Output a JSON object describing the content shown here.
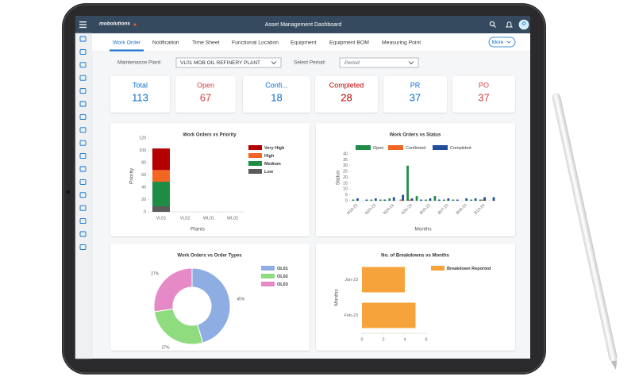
{
  "header": {
    "logo": "mobolutions",
    "title": "Asset Management Dashboard"
  },
  "tabs": [
    "Work Order",
    "Notification",
    "Time Sheet",
    "Functional Location",
    "Equipment",
    "Equipment BOM",
    "Measuring Point"
  ],
  "more": "More",
  "filters": {
    "plant_label": "Maintenance Plant:",
    "plant_value": "VL01 MOB OIL REFINERY PLANT",
    "period_label": "Select Period:",
    "period_placeholder": "Period"
  },
  "tiles": [
    {
      "label": "Total",
      "value": 113,
      "color": "#0a6ed1"
    },
    {
      "label": "Open",
      "value": 67,
      "color": "#d04343"
    },
    {
      "label": "Confi...",
      "value": 18,
      "color": "#0a6ed1"
    },
    {
      "label": "Completed",
      "value": 28,
      "color": "#bb0000"
    },
    {
      "label": "PR",
      "value": 37,
      "color": "#0a6ed1"
    },
    {
      "label": "PO",
      "value": 37,
      "color": "#d04343"
    }
  ],
  "chart_data": [
    {
      "type": "bar",
      "stacked": true,
      "title": "Work Orders vs Priority",
      "x_label": "Plants",
      "y_label": "Priority",
      "categories": [
        "VL01",
        "VL02",
        "WL01",
        "WL02"
      ],
      "series": [
        {
          "name": "Low",
          "color": "#5a5a5a",
          "values": [
            9,
            0,
            0,
            0
          ]
        },
        {
          "name": "Medium",
          "color": "#1e8c45",
          "values": [
            40,
            0,
            0,
            0
          ]
        },
        {
          "name": "High",
          "color": "#f26522",
          "values": [
            19,
            0,
            0,
            0
          ]
        },
        {
          "name": "Very High",
          "color": "#b50000",
          "values": [
            35,
            0,
            0,
            0
          ]
        }
      ],
      "ylim": [
        0,
        120
      ],
      "yticks": [
        0,
        20,
        40,
        60,
        80,
        100,
        120
      ],
      "legend": "right"
    },
    {
      "type": "bar",
      "stacked": false,
      "title": "Work Orders vs Status",
      "x_label": "Months",
      "y_label": "Status",
      "categories": [
        "N16-23",
        null,
        "N20-23",
        null,
        "N24-23",
        null,
        "N31-23",
        null,
        "B03-23",
        null,
        "B07-23",
        null,
        "B09-23",
        null,
        "B13-23",
        null
      ],
      "series": [
        {
          "name": "Open",
          "color": "#1e8c45",
          "values": [
            1,
            0,
            1,
            1,
            2,
            0,
            30,
            4,
            1,
            4,
            1,
            1,
            0,
            1,
            1,
            0
          ]
        },
        {
          "name": "Confirmed",
          "color": "#f26522",
          "values": [
            0,
            0,
            0,
            0,
            0,
            1,
            1,
            0,
            0,
            0,
            0,
            0,
            0,
            0,
            1,
            0
          ]
        },
        {
          "name": "Completed",
          "color": "#1f4e9c",
          "values": [
            2,
            1,
            2,
            1,
            3,
            5,
            2,
            1,
            2,
            1,
            2,
            1,
            2,
            2,
            3,
            3
          ]
        }
      ],
      "ylim": [
        0,
        40
      ],
      "yticks": [
        0,
        5,
        10,
        15,
        20,
        25,
        30,
        35,
        40
      ],
      "legend": "top"
    },
    {
      "type": "pie",
      "donut": true,
      "title": "Work Orders vs Order Types",
      "categories": [
        "OL01",
        "OL02",
        "OL03"
      ],
      "values": [
        45,
        27,
        27
      ],
      "value_labels": [
        "45%",
        "27%",
        "27%"
      ],
      "colors": [
        "#8eaee3",
        "#8fdc7f",
        "#e58ac6"
      ],
      "legend": "right"
    },
    {
      "type": "bar",
      "orientation": "horizontal",
      "title": "No. of Breakdowns vs Months",
      "y_label": "Months",
      "categories": [
        "Jan-23",
        "Feb-23"
      ],
      "series": [
        {
          "name": "Breakdown Reported",
          "color": "#f7a33c",
          "values": [
            4,
            5
          ]
        }
      ],
      "xlim": [
        0,
        6
      ],
      "xticks": [
        0,
        2,
        4,
        6
      ],
      "legend": "top"
    }
  ]
}
